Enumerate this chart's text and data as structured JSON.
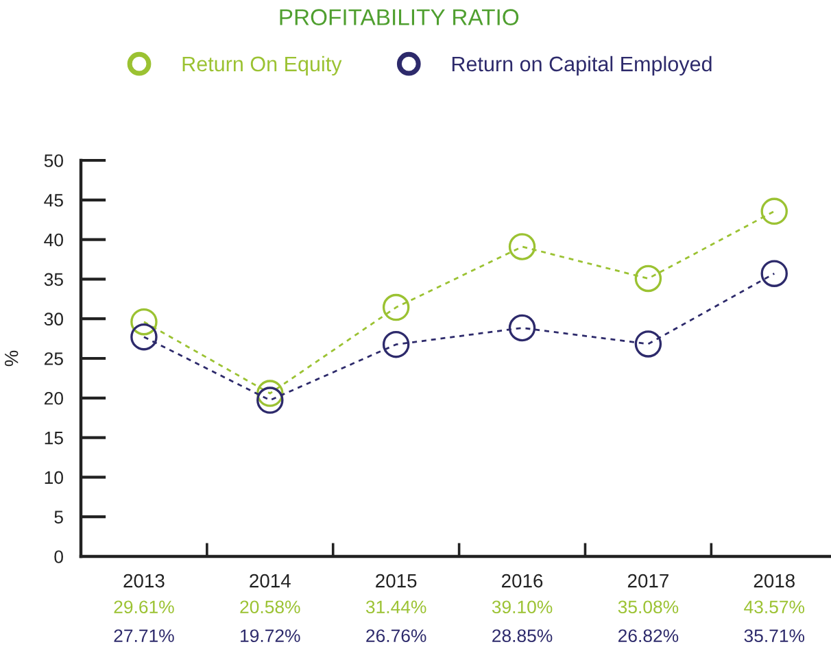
{
  "chart_data": {
    "type": "line",
    "title": "PROFITABILITY RATIO",
    "ylabel": "%",
    "categories": [
      "2013",
      "2014",
      "2015",
      "2016",
      "2017",
      "2018"
    ],
    "series": [
      {
        "name": "Return On Equity",
        "color": "#9bc232",
        "values": [
          29.61,
          20.58,
          31.44,
          39.1,
          35.08,
          43.57
        ],
        "value_labels": [
          "29.61%",
          "20.58%",
          "31.44%",
          "39.10%",
          "35.08%",
          "43.57%"
        ]
      },
      {
        "name": "Return on Capital Employed",
        "color": "#2d2a6b",
        "values": [
          27.71,
          19.72,
          26.76,
          28.85,
          26.82,
          35.71
        ],
        "value_labels": [
          "27.71%",
          "19.72%",
          "26.76%",
          "28.85%",
          "26.82%",
          "35.71%"
        ]
      }
    ],
    "ylim": [
      0,
      50
    ],
    "yticks": [
      0,
      5,
      10,
      15,
      20,
      25,
      30,
      35,
      40,
      45,
      50
    ],
    "legend": "top",
    "marker": "circle",
    "line_style": "dashed"
  }
}
